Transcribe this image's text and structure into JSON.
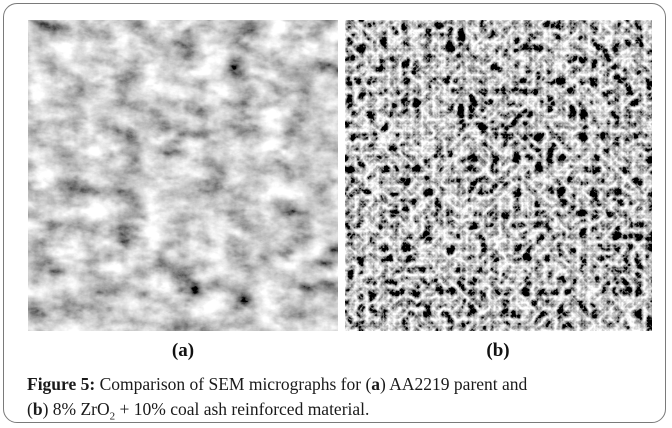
{
  "figure": {
    "panels": [
      {
        "label": "(a)"
      },
      {
        "label": "(b)"
      }
    ],
    "caption": {
      "label": "Figure 5:",
      "runs": [
        "Comparison of SEM micrographs for (",
        "a",
        ") AA2219 parent and",
        "(",
        "b",
        ") 8% ZrO",
        "2",
        " + 10% coal ash reinforced material."
      ]
    }
  }
}
